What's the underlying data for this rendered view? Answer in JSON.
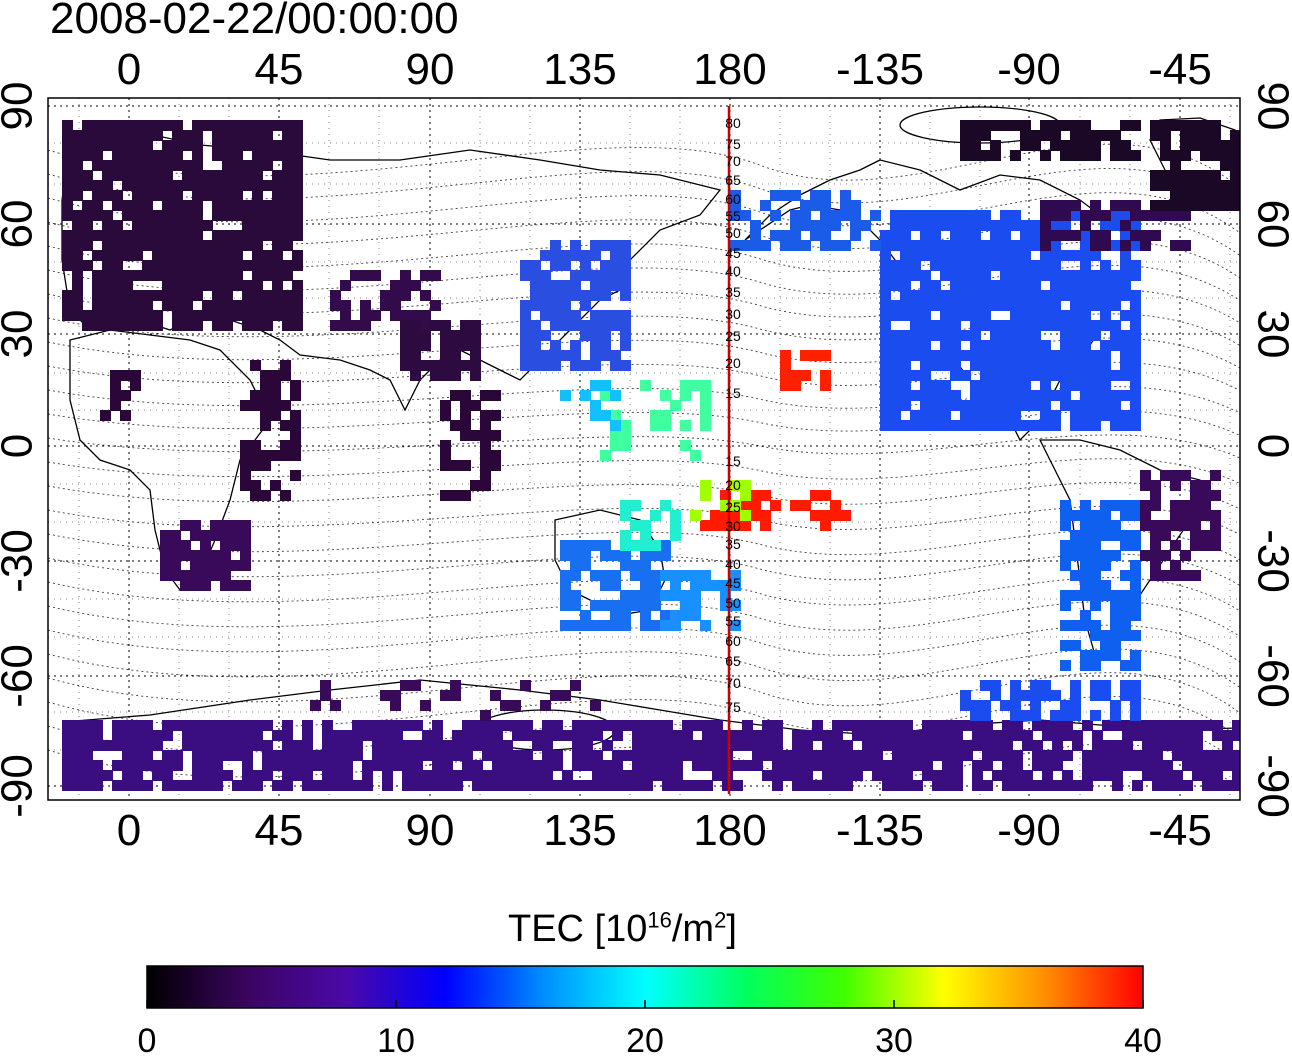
{
  "header": {
    "timestamp": "2008-02-22/00:00:00"
  },
  "map": {
    "lon_ticks": [
      "0",
      "45",
      "90",
      "135",
      "180",
      "-135",
      "-90",
      "-45"
    ],
    "lat_ticks_left": [
      "90",
      "60",
      "30",
      "0",
      "-30",
      "-60",
      "-90"
    ],
    "lat_ticks_right": [
      "90",
      "60",
      "30",
      "0",
      "-30",
      "-60",
      "-90"
    ],
    "meridian_labels": [
      "80",
      "75",
      "70",
      "65",
      "60",
      "55",
      "50",
      "45",
      "40",
      "35",
      "30",
      "25",
      "20",
      "15",
      "15",
      "20",
      "25",
      "30",
      "35",
      "40",
      "45",
      "50",
      "55",
      "60",
      "65",
      "70",
      "75"
    ],
    "marked_meridian_color": "#cc0000"
  },
  "colorbar": {
    "title_prefix": "TEC  [10",
    "title_exp1": "16",
    "title_mid": "/m",
    "title_exp2": "2",
    "title_suffix": "]",
    "tick_labels": [
      "0",
      "10",
      "20",
      "30",
      "40"
    ],
    "range": [
      0,
      40
    ],
    "colors": [
      "#000000",
      "#3a0560",
      "#4b08a8",
      "#0000ff",
      "#0090ff",
      "#00ffff",
      "#00ff60",
      "#40ff00",
      "#ffff00",
      "#ff9000",
      "#ff0000"
    ]
  }
}
